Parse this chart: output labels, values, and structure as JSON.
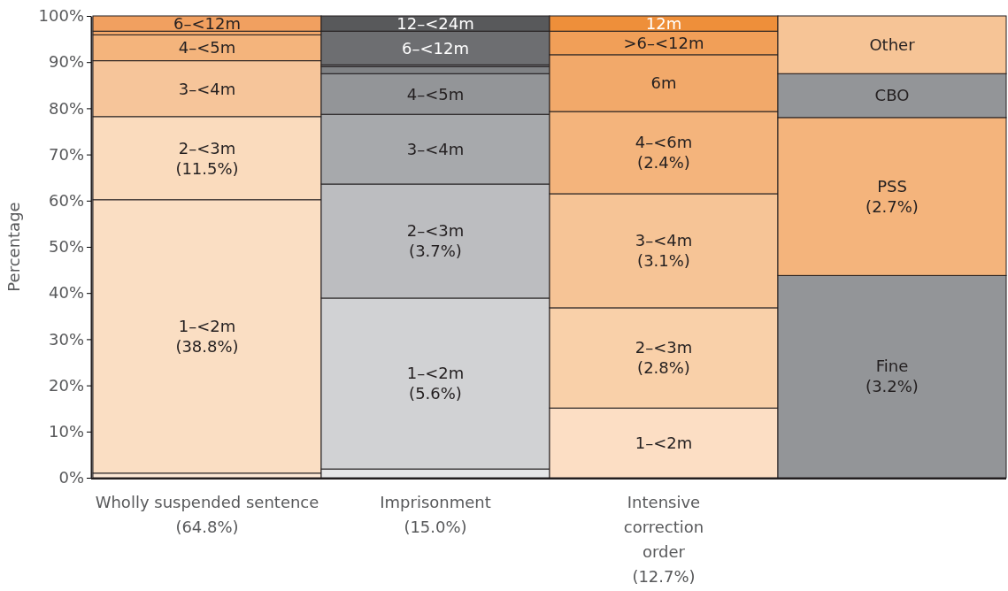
{
  "chart_data": {
    "type": "bar",
    "stacked": true,
    "ylabel": "Percentage",
    "categories": [
      "Wholly suspended sentence\n(64.8%)",
      "Imprisonment\n(15.0%)",
      "Intensive\ncorrection\norder\n(12.7%)",
      null
    ],
    "ylim": [
      0,
      100
    ],
    "yticks": [
      {
        "value": 0,
        "label": "0%"
      },
      {
        "value": 10,
        "label": "10%"
      },
      {
        "value": 20,
        "label": "20%"
      },
      {
        "value": 30,
        "label": "30%"
      },
      {
        "value": 40,
        "label": "40%"
      },
      {
        "value": 50,
        "label": "50%"
      },
      {
        "value": 60,
        "label": "60%"
      },
      {
        "value": 70,
        "label": "70%"
      },
      {
        "value": 80,
        "label": "80%"
      },
      {
        "value": 90,
        "label": "90%"
      },
      {
        "value": 100,
        "label": "100%"
      }
    ],
    "grid": false,
    "series": [
      {
        "color": "#fce8d6",
        "values": [
          1.0,
          null,
          null,
          null
        ]
      },
      {
        "name": "1–<2m\n(38.8%)",
        "color": "#fadec3",
        "values": [
          59.2,
          null,
          null,
          null
        ]
      },
      {
        "name": "2–<3m\n(11.5%)",
        "color": "#fadbbd",
        "values": [
          18.0,
          null,
          null,
          null
        ]
      },
      {
        "name": "3–<4m",
        "color": "#f6c59a",
        "values": [
          12.1,
          null,
          null,
          null
        ]
      },
      {
        "name": "4–<5m",
        "color": "#f4b47c",
        "values": [
          5.6,
          null,
          null,
          null
        ]
      },
      {
        "color": "#f3a86a",
        "values": [
          0.8,
          null,
          null,
          null
        ]
      },
      {
        "name": "6–<12m",
        "color": "#f1a060",
        "values": [
          3.3,
          null,
          null,
          null
        ]
      },
      {
        "color": "#e6e7e8",
        "values": [
          null,
          1.9,
          null,
          null
        ]
      },
      {
        "name": "1–<2m\n(5.6%)",
        "color": "#d1d2d4",
        "values": [
          null,
          37.0,
          null,
          null
        ]
      },
      {
        "name": "2–<3m\n(3.7%)",
        "color": "#bcbdc0",
        "values": [
          null,
          24.7,
          null,
          null
        ]
      },
      {
        "name": "3–<4m",
        "color": "#a7a9ac",
        "values": [
          null,
          15.1,
          null,
          null
        ]
      },
      {
        "name": "4–<5m",
        "color": "#939598",
        "values": [
          null,
          8.8,
          null,
          null
        ]
      },
      {
        "color": "#808285",
        "values": [
          null,
          1.5,
          null,
          null
        ]
      },
      {
        "color": "#747578",
        "values": [
          null,
          0.4,
          null,
          null
        ]
      },
      {
        "name": "6–<12m",
        "color": "#6d6e71",
        "values": [
          null,
          7.3,
          null,
          null
        ]
      },
      {
        "name": "12–<24m",
        "color": "#58595b",
        "values": [
          null,
          3.3,
          null,
          null
        ]
      },
      {
        "name": "1–<2m",
        "color": "#fcdec4",
        "values": [
          null,
          null,
          15.1,
          null
        ]
      },
      {
        "name": "2–<3m\n(2.8%)",
        "color": "#f9d0a9",
        "values": [
          null,
          null,
          21.7,
          null
        ]
      },
      {
        "name": "3–<4m\n(3.1%)",
        "color": "#f6c496",
        "values": [
          null,
          null,
          24.7,
          null
        ]
      },
      {
        "name": "4–<6m\n(2.4%)",
        "color": "#f4b47c",
        "values": [
          null,
          null,
          17.8,
          null
        ]
      },
      {
        "name": "6m",
        "color": "#f2a96a",
        "values": [
          null,
          null,
          12.3,
          null
        ]
      },
      {
        "name": ">6–<12m",
        "color": "#f19f58",
        "values": [
          null,
          null,
          5.1,
          null
        ]
      },
      {
        "name": "12m",
        "color": "#ee8f3a",
        "values": [
          null,
          null,
          3.3,
          null
        ]
      },
      {
        "name": "Fine\n(3.2%)",
        "color": "#939598",
        "values": [
          null,
          null,
          null,
          43.8
        ]
      },
      {
        "name": "PSS\n(2.7%)",
        "color": "#f4b47c",
        "values": [
          null,
          null,
          null,
          34.2
        ]
      },
      {
        "name": "CBO",
        "color": "#939598",
        "values": [
          null,
          null,
          null,
          9.5
        ]
      },
      {
        "name": "Other",
        "color": "#f6c496",
        "values": [
          null,
          null,
          null,
          12.5
        ]
      }
    ]
  }
}
